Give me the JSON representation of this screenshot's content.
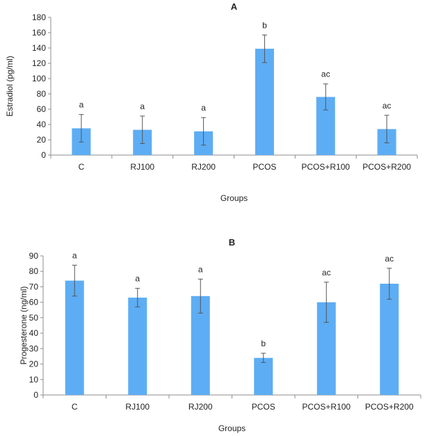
{
  "chart_data": [
    {
      "panel": "A",
      "type": "bar",
      "title": "A",
      "xlabel": "Groups",
      "ylabel": "Estradiol (pg/ml)",
      "categories": [
        "C",
        "RJ100",
        "RJ200",
        "PCOS",
        "PCOS+R100",
        "PCOS+R200"
      ],
      "values": [
        35,
        33,
        31,
        139,
        76,
        34
      ],
      "errors": [
        18,
        18,
        18,
        18,
        17,
        18
      ],
      "significance": [
        "a",
        "a",
        "a",
        "b",
        "ac",
        "ac"
      ],
      "ylim": [
        0,
        180
      ],
      "yticks": [
        0,
        20,
        40,
        60,
        80,
        100,
        120,
        140,
        160,
        180
      ],
      "bar_color": "#5DADF4",
      "grid": false
    },
    {
      "panel": "B",
      "type": "bar",
      "title": "B",
      "xlabel": "Groups",
      "ylabel": "Progesterone (ng/ml)",
      "categories": [
        "C",
        "RJ100",
        "RJ200",
        "PCOS",
        "PCOS+R100",
        "PCOS+R200"
      ],
      "values": [
        74,
        63,
        64,
        24,
        60,
        72
      ],
      "errors": [
        10,
        6,
        11,
        3,
        13,
        10
      ],
      "significance": [
        "a",
        "a",
        "a",
        "b",
        "ac",
        "ac"
      ],
      "ylim": [
        0,
        90
      ],
      "yticks": [
        0,
        10,
        20,
        30,
        40,
        50,
        60,
        70,
        80,
        90
      ],
      "bar_color": "#5DADF4",
      "grid": false
    }
  ]
}
